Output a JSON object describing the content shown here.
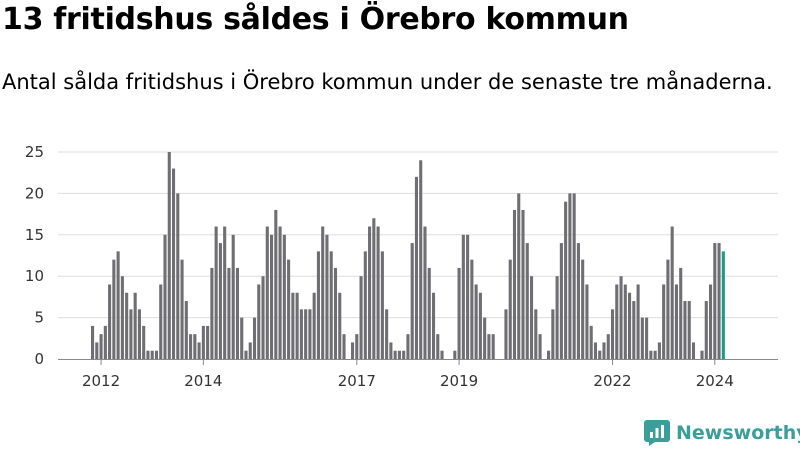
{
  "title": "13 fritidshus såldes i Örebro kommun",
  "subtitle": "Antal sålda fritidshus i Örebro kommun under de senaste tre månaderna.",
  "brand": {
    "name": "Newsworthy",
    "color": "#3a9e9a"
  },
  "colors": {
    "bar": "#6f6f73",
    "highlight": "#1e9a8c",
    "grid": "#dddddd",
    "axis": "#888888"
  },
  "chart_data": {
    "type": "bar",
    "title": "13 fritidshus såldes i Örebro kommun",
    "subtitle": "Antal sålda fritidshus i Örebro kommun under de senaste tre månaderna.",
    "x_start": "2011-11",
    "interval": "month",
    "values": [
      4,
      2,
      3,
      4,
      9,
      12,
      13,
      10,
      8,
      6,
      8,
      6,
      4,
      1,
      1,
      1,
      9,
      15,
      25,
      23,
      20,
      12,
      7,
      3,
      3,
      2,
      4,
      4,
      11,
      16,
      14,
      16,
      11,
      15,
      11,
      5,
      1,
      2,
      5,
      9,
      10,
      16,
      15,
      18,
      16,
      15,
      12,
      8,
      8,
      6,
      6,
      6,
      8,
      13,
      16,
      15,
      13,
      11,
      8,
      3,
      0,
      2,
      3,
      10,
      13,
      16,
      17,
      16,
      13,
      6,
      2,
      1,
      1,
      1,
      3,
      14,
      22,
      24,
      16,
      11,
      8,
      3,
      1,
      0,
      0,
      1,
      11,
      15,
      15,
      12,
      9,
      8,
      5,
      3,
      3,
      0,
      0,
      6,
      12,
      18,
      20,
      18,
      14,
      10,
      6,
      3,
      0,
      1,
      6,
      10,
      14,
      19,
      20,
      20,
      14,
      12,
      9,
      4,
      2,
      1,
      2,
      3,
      6,
      9,
      10,
      9,
      8,
      7,
      9,
      5,
      5,
      1,
      1,
      2,
      9,
      12,
      16,
      9,
      11,
      7,
      7,
      2,
      0,
      1,
      7,
      9,
      14,
      14,
      13
    ],
    "highlight_last": true,
    "data_labels": [
      {
        "index": 155,
        "text": "13"
      }
    ],
    "x_ticks": [
      {
        "label": "2012",
        "index": 2
      },
      {
        "label": "2014",
        "index": 26
      },
      {
        "label": "2017",
        "index": 62
      },
      {
        "label": "2019",
        "index": 86
      },
      {
        "label": "2022",
        "index": 122
      },
      {
        "label": "2024",
        "index": 146
      }
    ],
    "y_ticks": [
      0,
      5,
      10,
      15,
      20,
      25
    ],
    "ylim": [
      0,
      25
    ],
    "grid": true,
    "xlabel": "",
    "ylabel": ""
  }
}
